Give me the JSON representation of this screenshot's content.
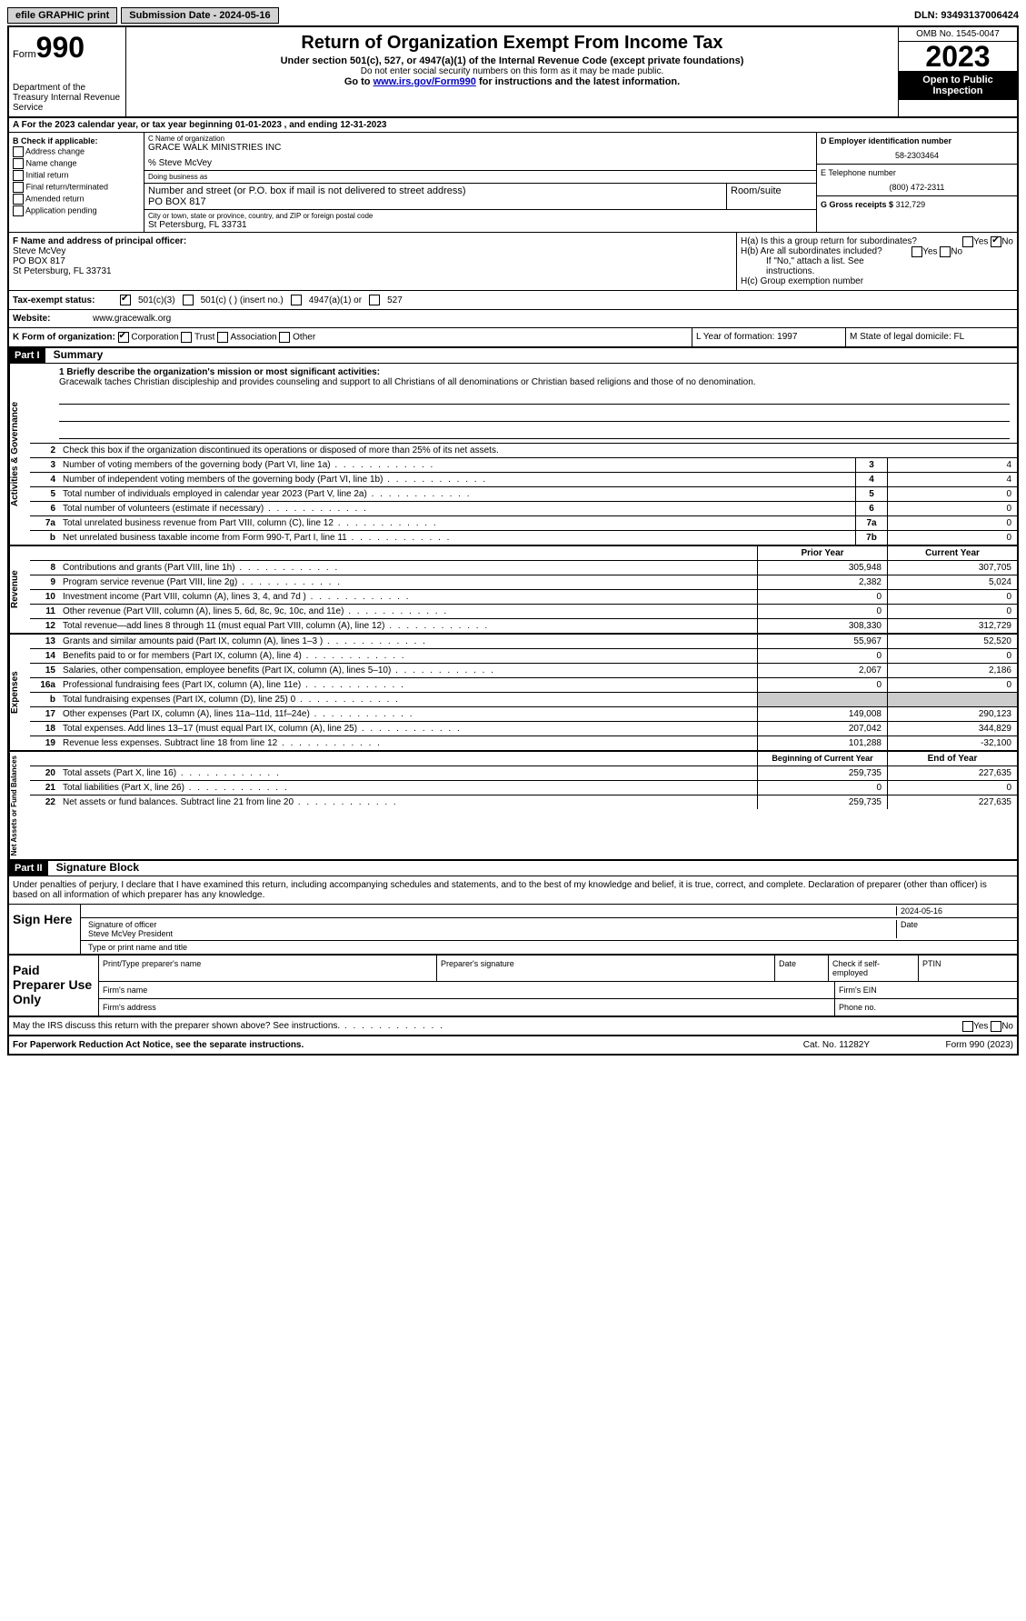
{
  "topbar": {
    "efile": "efile GRAPHIC print",
    "submission_label": "Submission Date - 2024-05-16",
    "dln": "DLN: 93493137006424"
  },
  "header": {
    "form_word": "Form",
    "form_num": "990",
    "dept": "Department of the Treasury Internal Revenue Service",
    "title": "Return of Organization Exempt From Income Tax",
    "sub1": "Under section 501(c), 527, or 4947(a)(1) of the Internal Revenue Code (except private foundations)",
    "sub2": "Do not enter social security numbers on this form as it may be made public.",
    "sub3_pre": "Go to ",
    "sub3_link": "www.irs.gov/Form990",
    "sub3_post": " for instructions and the latest information.",
    "omb": "OMB No. 1545-0047",
    "year": "2023",
    "open": "Open to Public Inspection"
  },
  "row_a": "A For the 2023 calendar year, or tax year beginning 01-01-2023   , and ending 12-31-2023",
  "sec_b": {
    "title": "B Check if applicable:",
    "items": [
      "Address change",
      "Name change",
      "Initial return",
      "Final return/terminated",
      "Amended return",
      "Application pending"
    ]
  },
  "sec_c": {
    "name_lbl": "C Name of organization",
    "name": "GRACE WALK MINISTRIES INC",
    "care_of": "% Steve McVey",
    "dba_lbl": "Doing business as",
    "street_lbl": "Number and street (or P.O. box if mail is not delivered to street address)",
    "street": "PO BOX 817",
    "room_lbl": "Room/suite",
    "city_lbl": "City or town, state or province, country, and ZIP or foreign postal code",
    "city": "St Petersburg, FL  33731"
  },
  "sec_d": {
    "lbl": "D Employer identification number",
    "val": "58-2303464"
  },
  "sec_e": {
    "lbl": "E Telephone number",
    "val": "(800) 472-2311"
  },
  "sec_g": {
    "lbl": "G Gross receipts $",
    "val": "312,729"
  },
  "sec_f": {
    "lbl": "F Name and address of principal officer:",
    "line1": "Steve McVey",
    "line2": "PO BOX 817",
    "line3": "St Petersburg, FL  33731"
  },
  "sec_h": {
    "a": "H(a)  Is this a group return for subordinates?",
    "b": "H(b)  Are all subordinates included?",
    "b_note": "If \"No,\" attach a list. See instructions.",
    "c": "H(c)  Group exemption number"
  },
  "row_i": {
    "lbl": "Tax-exempt status:",
    "opts": [
      "501(c)(3)",
      "501(c) (  ) (insert no.)",
      "4947(a)(1) or",
      "527"
    ]
  },
  "row_j": {
    "lbl": "Website:",
    "val": "www.gracewalk.org"
  },
  "row_k": {
    "lbl": "K Form of organization:",
    "opts": [
      "Corporation",
      "Trust",
      "Association",
      "Other"
    ],
    "l": "L Year of formation: 1997",
    "m": "M State of legal domicile: FL"
  },
  "part1": {
    "hdr": "Part I",
    "title": "Summary"
  },
  "mission": {
    "lbl": "1  Briefly describe the organization's mission or most significant activities:",
    "text": "Gracewalk taches Christian discipleship and provides counseling and support to all Christians of all denominations or Christian based religions and those of no denomination."
  },
  "gov": {
    "tab": "Activities & Governance",
    "l2": "Check this box      if the organization discontinued its operations or disposed of more than 25% of its net assets.",
    "rows": [
      {
        "n": "3",
        "t": "Number of voting members of the governing body (Part VI, line 1a)",
        "b": "3",
        "v": "4"
      },
      {
        "n": "4",
        "t": "Number of independent voting members of the governing body (Part VI, line 1b)",
        "b": "4",
        "v": "4"
      },
      {
        "n": "5",
        "t": "Total number of individuals employed in calendar year 2023 (Part V, line 2a)",
        "b": "5",
        "v": "0"
      },
      {
        "n": "6",
        "t": "Total number of volunteers (estimate if necessary)",
        "b": "6",
        "v": "0"
      },
      {
        "n": "7a",
        "t": "Total unrelated business revenue from Part VIII, column (C), line 12",
        "b": "7a",
        "v": "0"
      },
      {
        "n": "b",
        "t": "Net unrelated business taxable income from Form 990-T, Part I, line 11",
        "b": "7b",
        "v": "0"
      }
    ]
  },
  "rev": {
    "tab": "Revenue",
    "hdr_prior": "Prior Year",
    "hdr_curr": "Current Year",
    "rows": [
      {
        "n": "8",
        "t": "Contributions and grants (Part VIII, line 1h)",
        "p": "305,948",
        "c": "307,705"
      },
      {
        "n": "9",
        "t": "Program service revenue (Part VIII, line 2g)",
        "p": "2,382",
        "c": "5,024"
      },
      {
        "n": "10",
        "t": "Investment income (Part VIII, column (A), lines 3, 4, and 7d )",
        "p": "0",
        "c": "0"
      },
      {
        "n": "11",
        "t": "Other revenue (Part VIII, column (A), lines 5, 6d, 8c, 9c, 10c, and 11e)",
        "p": "0",
        "c": "0"
      },
      {
        "n": "12",
        "t": "Total revenue—add lines 8 through 11 (must equal Part VIII, column (A), line 12)",
        "p": "308,330",
        "c": "312,729"
      }
    ]
  },
  "exp": {
    "tab": "Expenses",
    "rows": [
      {
        "n": "13",
        "t": "Grants and similar amounts paid (Part IX, column (A), lines 1–3 )",
        "p": "55,967",
        "c": "52,520"
      },
      {
        "n": "14",
        "t": "Benefits paid to or for members (Part IX, column (A), line 4)",
        "p": "0",
        "c": "0"
      },
      {
        "n": "15",
        "t": "Salaries, other compensation, employee benefits (Part IX, column (A), lines 5–10)",
        "p": "2,067",
        "c": "2,186"
      },
      {
        "n": "16a",
        "t": "Professional fundraising fees (Part IX, column (A), line 11e)",
        "p": "0",
        "c": "0"
      },
      {
        "n": "b",
        "t": "Total fundraising expenses (Part IX, column (D), line 25) 0",
        "p": "",
        "c": "",
        "gray": true
      },
      {
        "n": "17",
        "t": "Other expenses (Part IX, column (A), lines 11a–11d, 11f–24e)",
        "p": "149,008",
        "c": "290,123"
      },
      {
        "n": "18",
        "t": "Total expenses. Add lines 13–17 (must equal Part IX, column (A), line 25)",
        "p": "207,042",
        "c": "344,829"
      },
      {
        "n": "19",
        "t": "Revenue less expenses. Subtract line 18 from line 12",
        "p": "101,288",
        "c": "-32,100"
      }
    ]
  },
  "net": {
    "tab": "Net Assets or Fund Balances",
    "hdr_beg": "Beginning of Current Year",
    "hdr_end": "End of Year",
    "rows": [
      {
        "n": "20",
        "t": "Total assets (Part X, line 16)",
        "p": "259,735",
        "c": "227,635"
      },
      {
        "n": "21",
        "t": "Total liabilities (Part X, line 26)",
        "p": "0",
        "c": "0"
      },
      {
        "n": "22",
        "t": "Net assets or fund balances. Subtract line 21 from line 20",
        "p": "259,735",
        "c": "227,635"
      }
    ]
  },
  "part2": {
    "hdr": "Part II",
    "title": "Signature Block"
  },
  "perjury": "Under penalties of perjury, I declare that I have examined this return, including accompanying schedules and statements, and to the best of my knowledge and belief, it is true, correct, and complete. Declaration of preparer (other than officer) is based on all information of which preparer has any knowledge.",
  "sign": {
    "lbl": "Sign Here",
    "date": "2024-05-16",
    "sig_lbl": "Signature of officer",
    "name": "Steve McVey  President",
    "type_lbl": "Type or print name and title",
    "date_lbl": "Date"
  },
  "paid": {
    "lbl": "Paid Preparer Use Only",
    "h1": "Print/Type preparer's name",
    "h2": "Preparer's signature",
    "h3": "Date",
    "h4": "Check      if self-employed",
    "h5": "PTIN",
    "firm_name": "Firm's name",
    "firm_ein": "Firm's EIN",
    "firm_addr": "Firm's address",
    "phone": "Phone no."
  },
  "discuss": "May the IRS discuss this return with the preparer shown above? See instructions.",
  "footer": {
    "left": "For Paperwork Reduction Act Notice, see the separate instructions.",
    "mid": "Cat. No. 11282Y",
    "right": "Form 990 (2023)"
  },
  "yes": "Yes",
  "no": "No"
}
